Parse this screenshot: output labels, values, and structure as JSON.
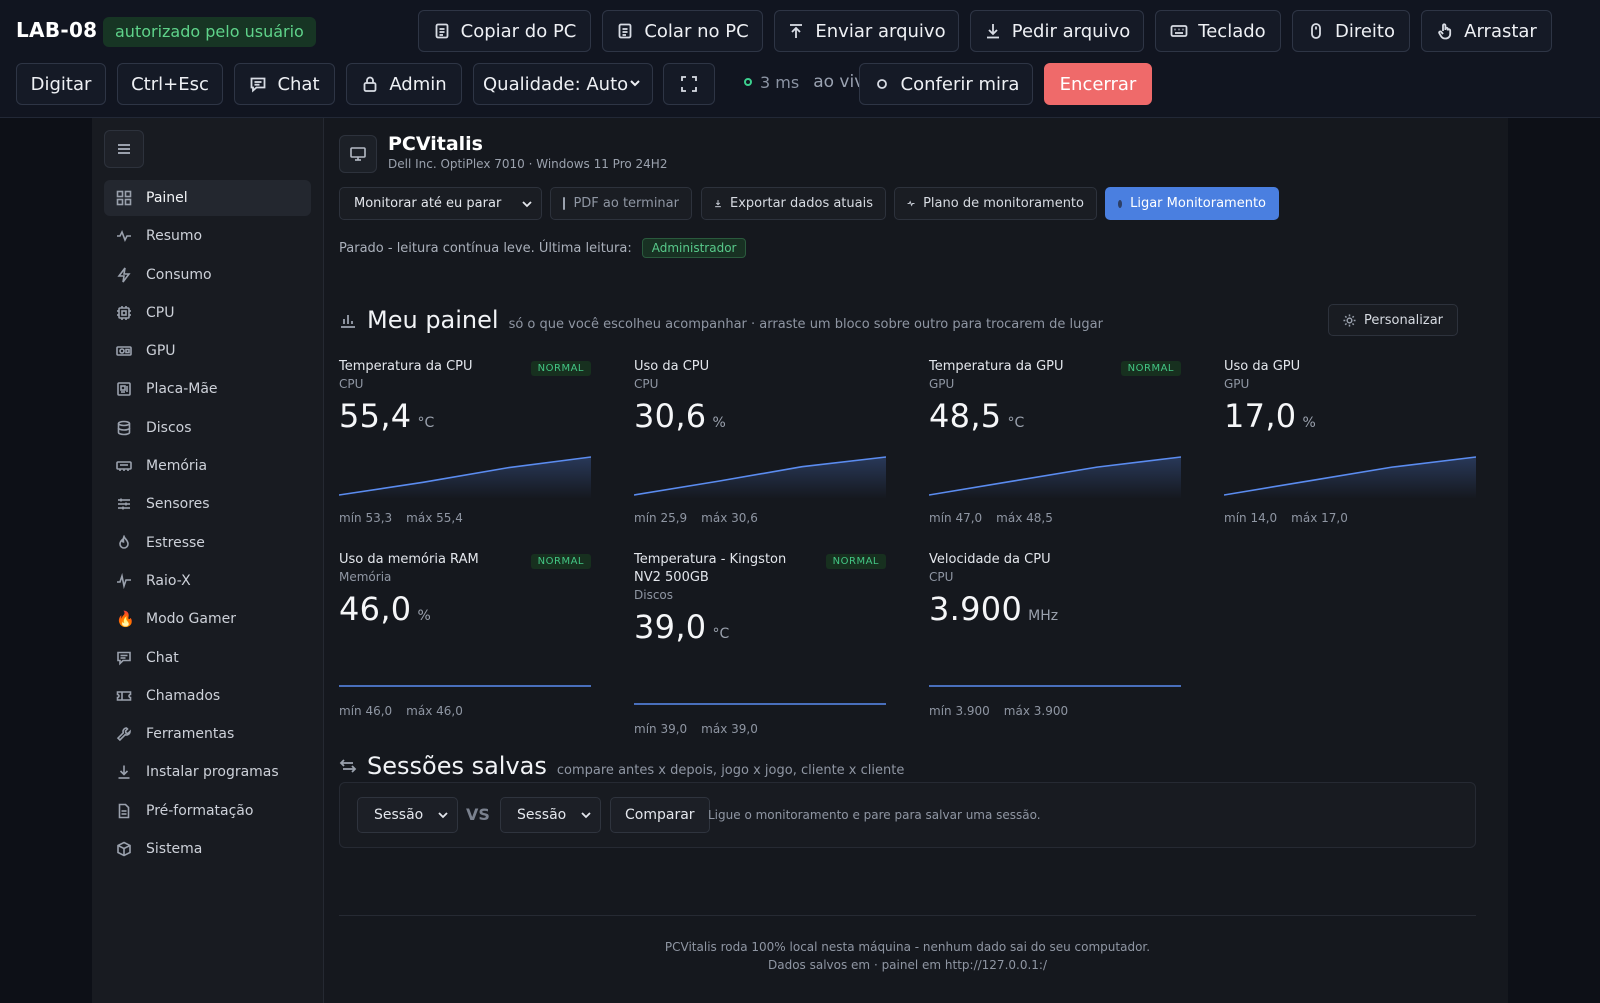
{
  "remote": {
    "host": "LAB-08",
    "auth_badge": "autorizado pelo usuário",
    "row1": [
      {
        "label": "Copiar do PC",
        "icon": "clipboard-copy-icon"
      },
      {
        "label": "Colar no PC",
        "icon": "clipboard-paste-icon"
      },
      {
        "label": "Enviar arquivo",
        "icon": "upload-icon"
      },
      {
        "label": "Pedir arquivo",
        "icon": "download-icon"
      },
      {
        "label": "Teclado",
        "icon": "keyboard-icon"
      },
      {
        "label": "Direito",
        "icon": "mouse-icon"
      },
      {
        "label": "Arrastar",
        "icon": "hand-pointer-icon"
      }
    ],
    "digitar": "Digitar",
    "ctrl_esc": "Ctrl+Esc",
    "chat": "Chat",
    "admin": "Admin",
    "quality": "Qualidade: Auto",
    "latency": "3 ms",
    "live": "ao vivo",
    "check_aim": "Conferir mira",
    "end": "Encerrar",
    "end_color": "#ef6a6a"
  },
  "sidebar": {
    "items": [
      {
        "label": "Painel",
        "icon": "grid-icon",
        "active": true
      },
      {
        "label": "Resumo",
        "icon": "pulse-icon"
      },
      {
        "label": "Consumo",
        "icon": "bolt-icon"
      },
      {
        "label": "CPU",
        "icon": "cpu-icon"
      },
      {
        "label": "GPU",
        "icon": "gpu-icon"
      },
      {
        "label": "Placa-Mãe",
        "icon": "motherboard-icon"
      },
      {
        "label": "Discos",
        "icon": "database-icon"
      },
      {
        "label": "Memória",
        "icon": "memory-icon"
      },
      {
        "label": "Sensores",
        "icon": "sliders-icon"
      },
      {
        "label": "Estresse",
        "icon": "flame-outline-icon"
      },
      {
        "label": "Raio-X",
        "icon": "xray-pulse-icon"
      },
      {
        "label": "Modo Gamer",
        "icon": "fire-icon"
      },
      {
        "label": "Chat",
        "icon": "chat-icon"
      },
      {
        "label": "Chamados",
        "icon": "ticket-icon"
      },
      {
        "label": "Ferramentas",
        "icon": "wrench-icon"
      },
      {
        "label": "Instalar programas",
        "icon": "download-icon"
      },
      {
        "label": "Pré-formatação",
        "icon": "file-icon"
      },
      {
        "label": "Sistema",
        "icon": "box-icon"
      }
    ]
  },
  "header": {
    "title": "PCVitalis",
    "subtitle": "Dell Inc. OptiPlex 7010 · Windows 11 Pro 24H2"
  },
  "controls": {
    "monitor_mode": "Monitorar até eu parar",
    "pdf": "PDF ao terminar",
    "export": "Exportar dados atuais",
    "plan": "Plano de monitoramento",
    "start": "Ligar Monitoramento",
    "accent": "#4a7fe0"
  },
  "status": {
    "text": "Parado - leitura contínua leve. Última leitura:",
    "role": "Administrador"
  },
  "dashboard": {
    "title": "Meu painel",
    "hint": "só o que você escolheu acompanhar · arraste um bloco sobre outro para trocarem de lugar",
    "customize": "Personalizar",
    "metrics": [
      {
        "title": "Temperatura da CPU",
        "category": "CPU",
        "value": "55,4",
        "unit": "°C",
        "badge": "NORMAL",
        "min": "mín 53,3",
        "max": "máx 55,4",
        "series": [
          53.3,
          54.0,
          54.8,
          55.4
        ]
      },
      {
        "title": "Uso da CPU",
        "category": "CPU",
        "value": "30,6",
        "unit": "%",
        "badge": "",
        "min": "mín 25,9",
        "max": "máx 30,6",
        "series": [
          25.9,
          27.6,
          29.4,
          30.6
        ]
      },
      {
        "title": "Temperatura da GPU",
        "category": "GPU",
        "value": "48,5",
        "unit": "°C",
        "badge": "NORMAL",
        "min": "mín 47,0",
        "max": "máx 48,5",
        "series": [
          47.0,
          47.55,
          48.1,
          48.5
        ]
      },
      {
        "title": "Uso da GPU",
        "category": "GPU",
        "value": "17,0",
        "unit": "%",
        "badge": "",
        "min": "mín 14,0",
        "max": "máx 17,0",
        "series": [
          14.0,
          15.1,
          16.2,
          17.0
        ]
      },
      {
        "title": "Uso da memória RAM",
        "category": "Memória",
        "value": "46,0",
        "unit": "%",
        "badge": "NORMAL",
        "min": "mín 46,0",
        "max": "máx 46,0",
        "series": [
          46.0,
          46.0,
          46.0,
          46.0
        ]
      },
      {
        "title": "Temperatura - Kingston NV2 500GB",
        "category": "Discos",
        "value": "39,0",
        "unit": "°C",
        "badge": "NORMAL",
        "min": "mín 39,0",
        "max": "máx 39,0",
        "series": [
          39.0,
          39.0,
          39.0,
          39.0
        ]
      },
      {
        "title": "Velocidade da CPU",
        "category": "CPU",
        "value": "3.900",
        "unit": "MHz",
        "badge": "",
        "min": "mín 3.900",
        "max": "máx 3.900",
        "series": [
          3900,
          3900,
          3900,
          3900
        ]
      }
    ]
  },
  "sessions": {
    "title": "Sessões salvas",
    "hint": "compare antes x depois, jogo x jogo, cliente x cliente",
    "a": "Sessão A",
    "vs": "VS",
    "b": "Sessão B",
    "compare": "Comparar",
    "empty": "Ligue o monitoramento e pare para salvar uma sessão."
  },
  "footer": {
    "line1": "PCVitalis roda 100% local nesta máquina - nenhum dado sai do seu computador.",
    "line2": "Dados salvos em · painel em http://127.0.0.1:/"
  }
}
